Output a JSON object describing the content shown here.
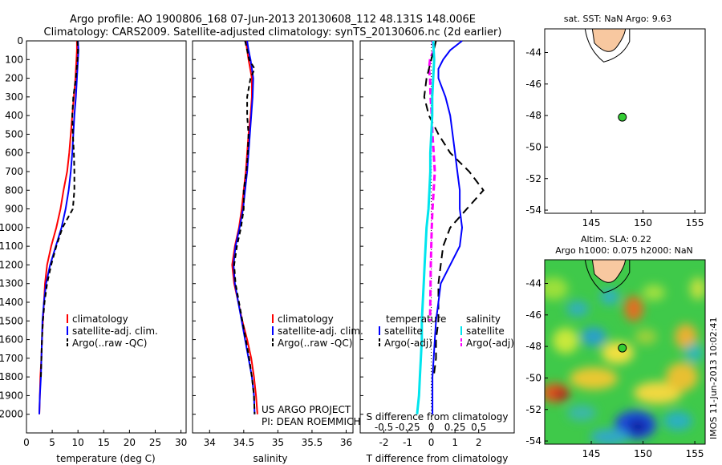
{
  "header": {
    "line1": "Argo profile: AO 1900806_168 07-Jun-2013 20130608_112 48.131S 148.006E",
    "line2": "Climatology: CARS2009. Satellite-adjusted climatology: synTS_20130606.nc (2d earlier)"
  },
  "colors": {
    "climatology": "#ff0000",
    "satellite": "#0000ff",
    "argo": "#000000",
    "salinity_satellite": "#00e5ee",
    "salinity_argo": "#ff00ff",
    "land": "#f8c8a0",
    "float_marker": "#33cc33"
  },
  "chart_data": [
    {
      "type": "line",
      "xlabel": "temperature (deg C)",
      "ylabel": "",
      "xlim": [
        0,
        31
      ],
      "ylim": [
        2100,
        0
      ],
      "xticks": [
        0,
        5,
        10,
        15,
        20,
        25,
        30
      ],
      "yticks": [
        0,
        100,
        200,
        300,
        400,
        500,
        600,
        700,
        800,
        900,
        1000,
        1100,
        1200,
        1300,
        1400,
        1500,
        1600,
        1700,
        1800,
        1900,
        2000
      ],
      "legend": [
        "climatology",
        "satellite-adj. clim.",
        "Argo(..raw -QC)"
      ],
      "series": [
        {
          "name": "climatology",
          "y": [
            0,
            50,
            100,
            200,
            300,
            400,
            500,
            600,
            700,
            800,
            900,
            1000,
            1100,
            1200,
            1300,
            1400,
            1500,
            1600,
            1700,
            1800,
            1900,
            2000
          ],
          "x": [
            9.8,
            9.8,
            9.7,
            9.5,
            9.2,
            8.9,
            8.6,
            8.3,
            7.9,
            7.2,
            6.6,
            5.8,
            4.8,
            4.0,
            3.6,
            3.4,
            3.2,
            3.0,
            2.9,
            2.7,
            2.6,
            2.5
          ]
        },
        {
          "name": "satellite-adj. clim.",
          "y": [
            0,
            50,
            100,
            200,
            300,
            400,
            500,
            600,
            700,
            800,
            900,
            1000,
            1100,
            1200,
            1300,
            1400,
            1500,
            1600,
            1700,
            1800,
            1900,
            2000
          ],
          "x": [
            10.0,
            10.1,
            10.0,
            9.8,
            9.6,
            9.3,
            9.1,
            8.9,
            8.6,
            8.2,
            7.6,
            6.8,
            5.7,
            4.6,
            3.8,
            3.4,
            3.1,
            3.0,
            2.9,
            2.8,
            2.6,
            2.5
          ]
        },
        {
          "name": "Argo(..raw -QC)",
          "y": [
            0,
            50,
            100,
            200,
            300,
            400,
            500,
            600,
            700,
            800,
            900,
            1000,
            1100,
            1200,
            1300,
            1400,
            1500,
            1600,
            1700,
            1800
          ],
          "x": [
            9.9,
            10.0,
            9.9,
            9.6,
            9.1,
            8.9,
            9.0,
            9.2,
            9.3,
            9.3,
            9.0,
            7.0,
            5.8,
            4.8,
            4.0,
            3.5,
            3.2,
            3.0,
            2.9,
            2.8
          ]
        }
      ]
    },
    {
      "type": "line",
      "xlabel": "salinity",
      "ylabel": "",
      "xlim": [
        33.75,
        36.1
      ],
      "ylim": [
        2100,
        0
      ],
      "xticks": [
        34,
        34.5,
        35,
        35.5,
        36
      ],
      "legend": [
        "climatology",
        "satellite-adj. clim.",
        "Argo(..raw -QC)"
      ],
      "annotation": [
        "US ARGO PROJECT",
        "PI: DEAN ROEMMICH"
      ],
      "series": [
        {
          "name": "climatology",
          "y": [
            0,
            50,
            100,
            200,
            300,
            400,
            500,
            600,
            700,
            800,
            900,
            1000,
            1100,
            1200,
            1300,
            1400,
            1500,
            1600,
            1700,
            1800,
            1900,
            2000
          ],
          "x": [
            34.53,
            34.55,
            34.57,
            34.62,
            34.62,
            34.6,
            34.57,
            34.55,
            34.53,
            34.5,
            34.47,
            34.43,
            34.37,
            34.33,
            34.36,
            34.42,
            34.48,
            34.55,
            34.61,
            34.65,
            34.68,
            34.7
          ]
        },
        {
          "name": "satellite-adj. clim.",
          "y": [
            0,
            50,
            100,
            200,
            300,
            400,
            500,
            600,
            700,
            800,
            900,
            1000,
            1100,
            1200,
            1300,
            1400,
            1500,
            1600,
            1700,
            1800,
            1900,
            2000
          ],
          "x": [
            34.55,
            34.57,
            34.6,
            34.64,
            34.63,
            34.61,
            34.59,
            34.57,
            34.55,
            34.52,
            34.49,
            34.44,
            34.38,
            34.35,
            34.37,
            34.42,
            34.47,
            34.52,
            34.57,
            34.62,
            34.65,
            34.66
          ]
        },
        {
          "name": "Argo(..raw -QC)",
          "y": [
            0,
            50,
            100,
            150,
            200,
            300,
            400,
            500,
            600,
            700,
            800,
            900,
            1000,
            1100,
            1200,
            1300,
            1400,
            1500,
            1600,
            1700,
            1800,
            1900,
            2000
          ],
          "x": [
            34.52,
            34.55,
            34.58,
            34.66,
            34.6,
            34.55,
            34.55,
            34.57,
            34.56,
            34.54,
            34.5,
            34.5,
            34.46,
            34.4,
            34.36,
            34.38,
            34.43,
            34.48,
            34.53,
            34.58,
            34.62,
            34.65,
            34.66
          ]
        }
      ]
    },
    {
      "type": "line",
      "xlabel": "T difference from climatology",
      "top_label": "S difference from climatology",
      "xlim": [
        -3,
        3.5
      ],
      "ylim": [
        2100,
        0
      ],
      "xticks_T": [
        -2,
        -1,
        0,
        1,
        2
      ],
      "xticks_S": [
        "-0.5",
        "-0.25",
        "0",
        "0.25",
        "0.5"
      ],
      "legend_headers": [
        "temperature",
        "salinity"
      ],
      "legend_T": [
        "satellite",
        "Argo(-adj)"
      ],
      "legend_S": [
        "satellite",
        "Argo(-adj)"
      ],
      "series": [
        {
          "name": "temperature satellite",
          "y": [
            0,
            50,
            100,
            150,
            200,
            300,
            400,
            500,
            600,
            700,
            800,
            900,
            1000,
            1100,
            1200,
            1300,
            1400,
            1500,
            1600,
            1700,
            1800,
            1900,
            2000
          ],
          "x": [
            1.3,
            0.8,
            0.5,
            0.3,
            0.3,
            0.6,
            0.8,
            0.9,
            1.0,
            1.1,
            1.2,
            1.2,
            1.3,
            1.2,
            0.8,
            0.4,
            0.3,
            0.2,
            0.15,
            0.1,
            0.05,
            0.05,
            0.05
          ]
        },
        {
          "name": "temperature Argo(-adj)",
          "y": [
            0,
            50,
            100,
            150,
            200,
            300,
            400,
            500,
            600,
            700,
            800,
            900,
            1000,
            1100,
            1200,
            1300,
            1400,
            1500,
            1600,
            1700,
            1800
          ],
          "x": [
            0.2,
            0.1,
            0.0,
            -0.1,
            -0.2,
            -0.3,
            -0.1,
            0.3,
            0.8,
            1.6,
            2.2,
            1.5,
            0.8,
            0.5,
            0.4,
            0.3,
            0.3,
            0.3,
            0.2,
            0.2,
            0.1
          ]
        },
        {
          "name": "salinity satellite",
          "y": [
            0,
            100,
            200,
            300,
            400,
            500,
            600,
            700,
            800,
            900,
            1000,
            1100,
            1200,
            1300,
            1400,
            1500,
            1600,
            1700,
            1800,
            1900,
            2000
          ],
          "x": [
            0.02,
            0.03,
            0.02,
            0.01,
            0.01,
            0.0,
            -0.01,
            -0.01,
            -0.02,
            -0.03,
            -0.05,
            -0.06,
            -0.07,
            -0.08,
            -0.09,
            -0.1,
            -0.1,
            -0.11,
            -0.12,
            -0.13,
            -0.15
          ]
        },
        {
          "name": "salinity Argo(-adj)",
          "y": [
            0,
            50,
            100,
            150,
            200,
            300,
            400,
            500,
            600,
            700,
            800,
            900,
            1000,
            1100,
            1200,
            1300,
            1400,
            1500
          ],
          "x": [
            0.05,
            0.1,
            -0.05,
            -0.1,
            -0.05,
            -0.03,
            0.02,
            0.05,
            0.1,
            0.15,
            0.1,
            0.05,
            0.02,
            0.0,
            -0.02,
            -0.03,
            -0.04,
            -0.05
          ]
        }
      ]
    },
    {
      "type": "scatter",
      "title": "sat. SST: NaN Argo: 9.63",
      "xlim": [
        140.5,
        156
      ],
      "ylim": [
        -54.2,
        -42.5
      ],
      "xticks": [
        145,
        150,
        155
      ],
      "yticks": [
        -44,
        -46,
        -48,
        -50,
        -52,
        -54
      ],
      "float_position": {
        "x": 148.0,
        "y": -48.1
      }
    },
    {
      "type": "heatmap",
      "title": "Altim. SLA: 0.22",
      "subtitle": "Argo h1000: 0.075 h2000: NaN",
      "xlim": [
        140.5,
        156
      ],
      "ylim": [
        -54.2,
        -42.5
      ],
      "xticks": [
        145,
        150,
        155
      ],
      "yticks": [
        -44,
        -46,
        -48,
        -50,
        -52,
        -54
      ],
      "float_position": {
        "x": 148.0,
        "y": -48.1
      },
      "side_note": "IMOS 11-Jun-2013 10:02:41"
    }
  ]
}
